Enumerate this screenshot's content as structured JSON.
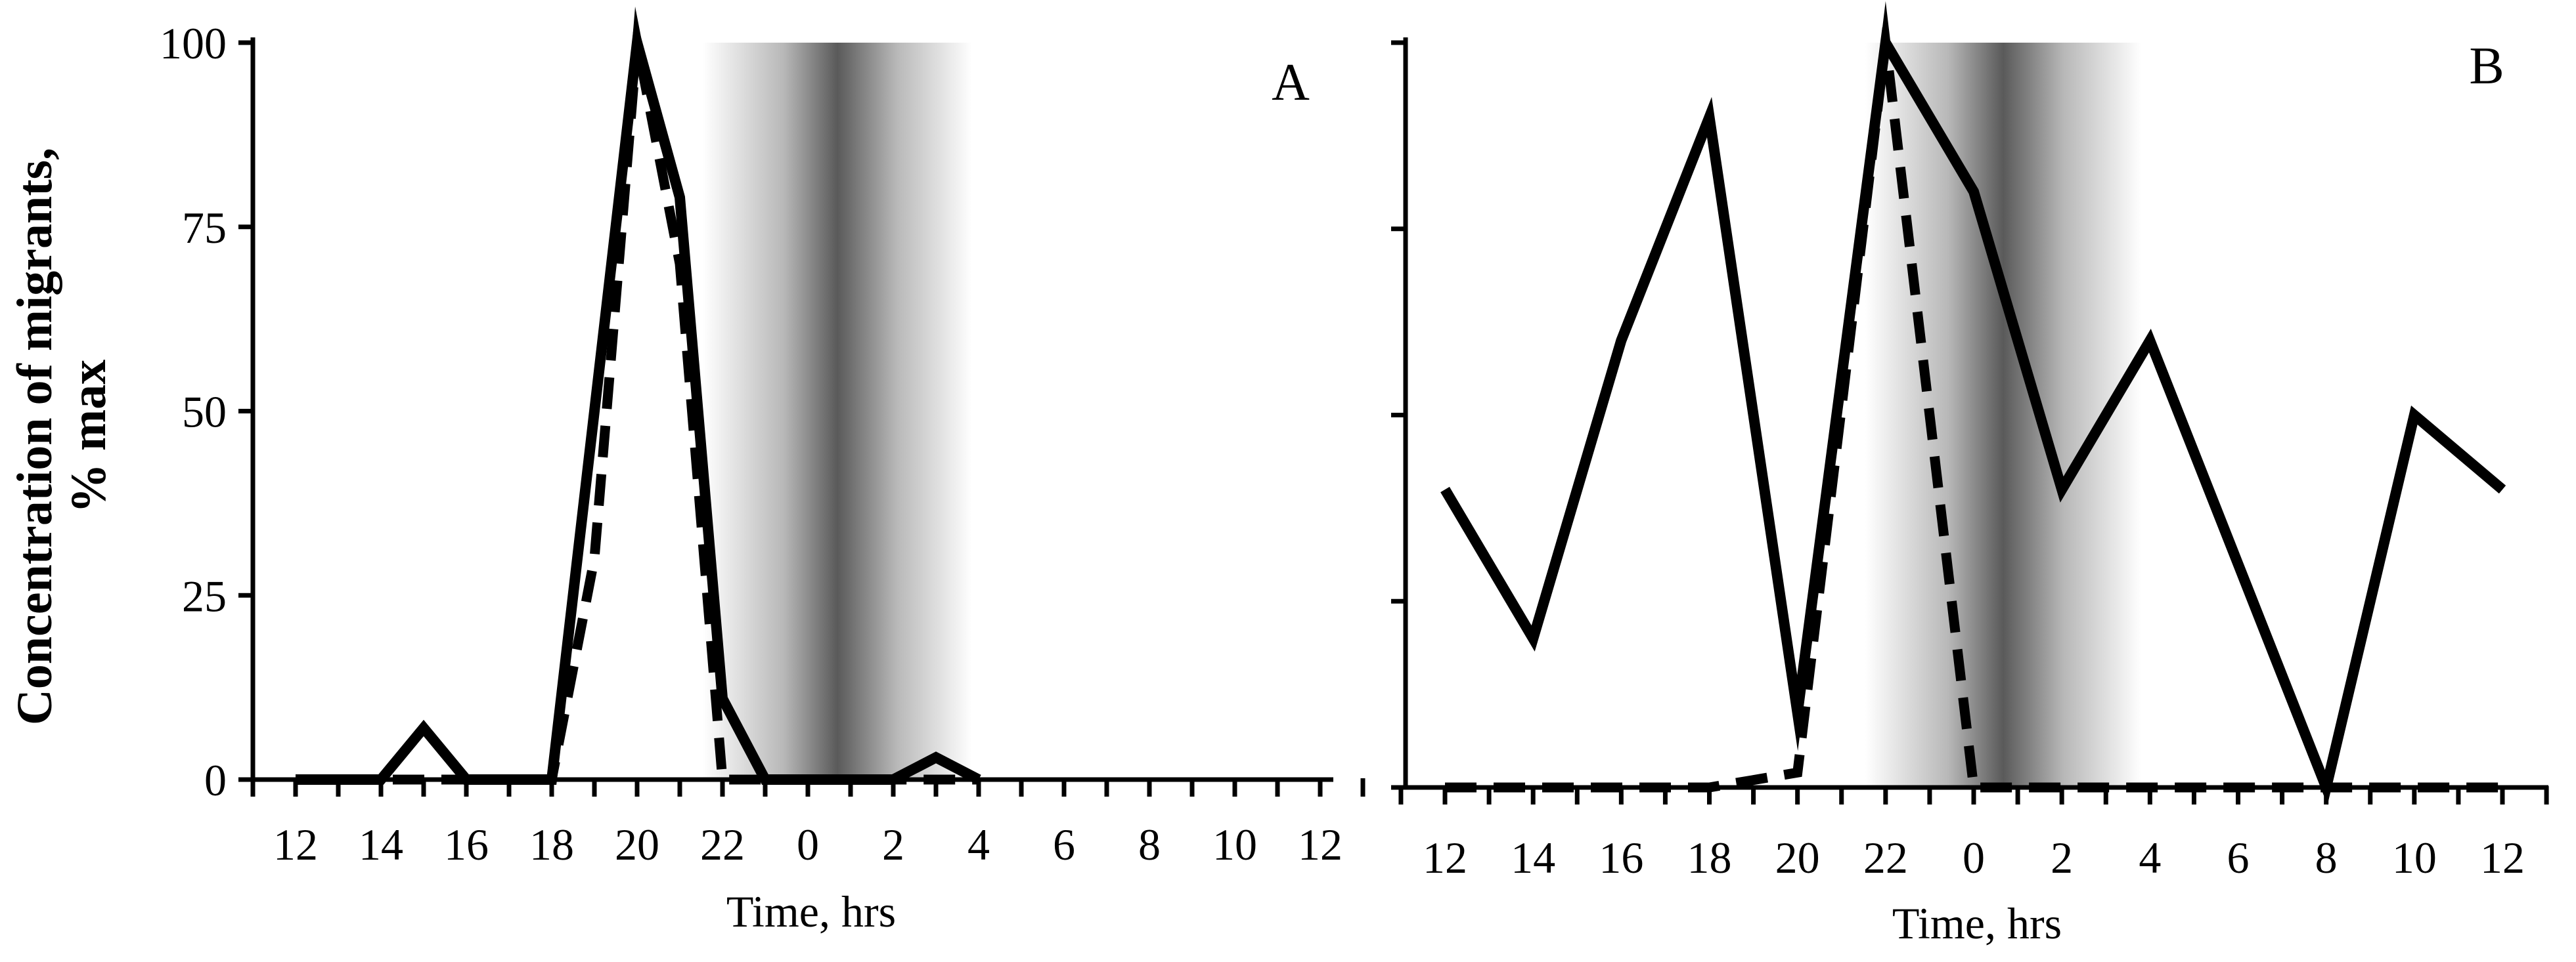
{
  "y_axis_label_lines": [
    "Concentration of migrants,",
    "% max"
  ],
  "chart_data": [
    {
      "type": "line",
      "panel_label": "A",
      "xlabel": "Time, hrs",
      "x_tick_labels": [
        "12",
        "14",
        "16",
        "18",
        "20",
        "22",
        "0",
        "2",
        "4",
        "6",
        "8",
        "10",
        "12"
      ],
      "y_tick_labels": [
        "0",
        "25",
        "50",
        "75",
        "100"
      ],
      "ylim": [
        0,
        100
      ],
      "shaded_interval": [
        "21:00",
        "04:00"
      ],
      "series": [
        {
          "style": "solid",
          "values": [
            0,
            0,
            0,
            7,
            0,
            0,
            0,
            50,
            100,
            79,
            11,
            0,
            0,
            0,
            0,
            3,
            0
          ]
        },
        {
          "style": "dashed",
          "values": [
            0,
            0,
            0,
            0,
            0,
            0,
            0,
            30,
            100,
            70,
            0,
            0,
            0,
            0,
            0,
            0,
            0
          ]
        }
      ]
    },
    {
      "type": "line",
      "panel_label": "B",
      "xlabel": "Time, hrs",
      "x_tick_labels": [
        "12",
        "14",
        "16",
        "18",
        "20",
        "22",
        "0",
        "2",
        "4",
        "6",
        "8",
        "10",
        "12"
      ],
      "y_tick_labels": [],
      "ylim": [
        0,
        100
      ],
      "shaded_interval": [
        "21:00",
        "04:00"
      ],
      "series": [
        {
          "style": "solid",
          "values": [
            40,
            20,
            60,
            90,
            10,
            100,
            80,
            40,
            60,
            30,
            0,
            50,
            40
          ]
        },
        {
          "style": "dashed",
          "values": [
            0,
            0,
            0,
            0,
            2,
            100,
            0,
            0,
            0,
            0,
            0,
            0,
            0
          ]
        }
      ]
    }
  ]
}
